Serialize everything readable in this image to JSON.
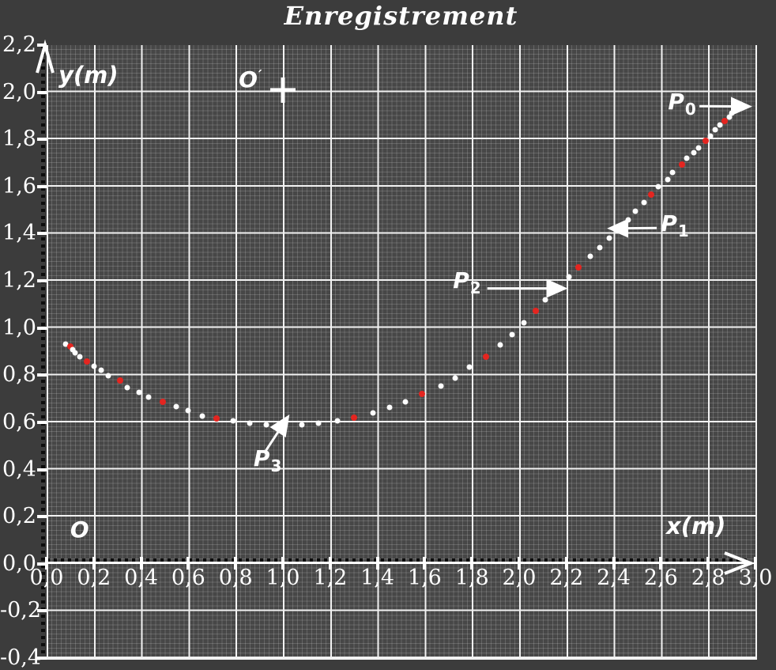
{
  "title": "Enregistrement",
  "axes": {
    "x_label": "x(m)",
    "y_label": "y(m)"
  },
  "colors": {
    "background": "#3c3c3c",
    "plot_background": "#474747",
    "major_grid": "#f2f2f2",
    "point_white": "#fdfdfd",
    "point_red": "#e42520",
    "text": "#ffffff",
    "axis_dash": "#0c0c0c"
  },
  "chart_data": {
    "type": "scatter",
    "title": "Enregistrement",
    "xlabel": "x(m)",
    "ylabel": "y(m)",
    "xlim": [
      0.0,
      3.0
    ],
    "ylim": [
      -0.4,
      2.2
    ],
    "grid": "on",
    "grid_major_step": 0.2,
    "grid_minor_step": 0.02,
    "xticks": {
      "values": [
        0.0,
        0.2,
        0.4,
        0.6,
        0.8,
        1.0,
        1.2,
        1.4,
        1.6,
        1.8,
        2.0,
        2.2,
        2.4,
        2.6,
        2.8,
        3.0
      ],
      "labels": [
        "0,0",
        "0,2",
        "0,4",
        "0,6",
        "0,8",
        "1,0",
        "1,2",
        "1,4",
        "1,6",
        "1,8",
        "2,0",
        "2,2",
        "2,4",
        "2,6",
        "2,8",
        "3,0"
      ]
    },
    "yticks": {
      "values": [
        2.2,
        2.0,
        1.8,
        1.6,
        1.4,
        1.2,
        1.0,
        0.8,
        0.6,
        0.4,
        0.2,
        0.0,
        -0.2,
        -0.4
      ],
      "labels": [
        "2,2",
        "2,0",
        "1,8",
        "1,6",
        "1,4",
        "1,2",
        "1,0",
        "0,8",
        "0,6",
        "0,4",
        "0,2",
        "0,0",
        "-0,2",
        "-0,4"
      ]
    },
    "points": [
      [
        0.08,
        0.932,
        0
      ],
      [
        0.1,
        0.921,
        1
      ],
      [
        0.11,
        0.909,
        0
      ],
      [
        0.12,
        0.896,
        0
      ],
      [
        0.14,
        0.879,
        0
      ],
      [
        0.17,
        0.859,
        1
      ],
      [
        0.2,
        0.838,
        0
      ],
      [
        0.23,
        0.82,
        0
      ],
      [
        0.26,
        0.798,
        0
      ],
      [
        0.31,
        0.776,
        1
      ],
      [
        0.34,
        0.749,
        0
      ],
      [
        0.39,
        0.728,
        0
      ],
      [
        0.43,
        0.708,
        0
      ],
      [
        0.49,
        0.686,
        1
      ],
      [
        0.55,
        0.666,
        0
      ],
      [
        0.6,
        0.65,
        0
      ],
      [
        0.66,
        0.628,
        0
      ],
      [
        0.72,
        0.617,
        1
      ],
      [
        0.79,
        0.605,
        0
      ],
      [
        0.86,
        0.597,
        0
      ],
      [
        0.93,
        0.589,
        0
      ],
      [
        1.0,
        0.59,
        1
      ],
      [
        1.08,
        0.589,
        0
      ],
      [
        1.15,
        0.595,
        0
      ],
      [
        1.23,
        0.606,
        0
      ],
      [
        1.3,
        0.619,
        1
      ],
      [
        1.38,
        0.64,
        0
      ],
      [
        1.45,
        0.663,
        0
      ],
      [
        1.52,
        0.687,
        0
      ],
      [
        1.59,
        0.72,
        1
      ],
      [
        1.67,
        0.753,
        0
      ],
      [
        1.73,
        0.789,
        0
      ],
      [
        1.79,
        0.835,
        0
      ],
      [
        1.86,
        0.879,
        1
      ],
      [
        1.92,
        0.927,
        0
      ],
      [
        1.97,
        0.971,
        0
      ],
      [
        2.02,
        1.024,
        0
      ],
      [
        2.07,
        1.072,
        1
      ],
      [
        2.11,
        1.12,
        0
      ],
      [
        2.16,
        1.166,
        0
      ],
      [
        2.21,
        1.216,
        0
      ],
      [
        2.25,
        1.258,
        1
      ],
      [
        2.3,
        1.303,
        0
      ],
      [
        2.34,
        1.341,
        0
      ],
      [
        2.38,
        1.381,
        0
      ],
      [
        2.42,
        1.422,
        1
      ],
      [
        2.46,
        1.46,
        0
      ],
      [
        2.49,
        1.497,
        0
      ],
      [
        2.53,
        1.534,
        0
      ],
      [
        2.56,
        1.567,
        1
      ],
      [
        2.59,
        1.6,
        0
      ],
      [
        2.63,
        1.63,
        0
      ],
      [
        2.65,
        1.661,
        0
      ],
      [
        2.69,
        1.692,
        1
      ],
      [
        2.71,
        1.719,
        0
      ],
      [
        2.74,
        1.745,
        0
      ],
      [
        2.76,
        1.765,
        0
      ],
      [
        2.79,
        1.794,
        1
      ],
      [
        2.81,
        1.814,
        0
      ],
      [
        2.83,
        1.84,
        0
      ],
      [
        2.85,
        1.862,
        0
      ],
      [
        2.87,
        1.877,
        1
      ],
      [
        2.89,
        1.894,
        0
      ],
      [
        2.9,
        1.911,
        0
      ],
      [
        2.92,
        1.925,
        0
      ],
      [
        2.93,
        1.938,
        1
      ]
    ],
    "point_note": "red mark every 4th recorded position",
    "named_points": {
      "P0": [
        2.93,
        1.94
      ],
      "P1": [
        2.42,
        1.42
      ],
      "P2": [
        2.16,
        1.17
      ],
      "P3": [
        1.0,
        0.59
      ],
      "O_prime": [
        1.0,
        2.0
      ],
      "O": [
        0.0,
        0.0
      ]
    },
    "annotations": [
      {
        "id": "P0",
        "text": "P",
        "sub": "0",
        "prime": false,
        "label_at": [
          2.63,
          2.016
        ],
        "arrow": [
          [
            2.763,
            1.941
          ],
          [
            2.906,
            1.94
          ]
        ]
      },
      {
        "id": "P1",
        "text": "P",
        "sub": "1",
        "prime": false,
        "label_at": [
          2.6,
          1.499
        ],
        "arrow": [
          [
            2.582,
            1.424
          ],
          [
            2.452,
            1.423
          ]
        ]
      },
      {
        "id": "P2",
        "text": "P",
        "sub": "2",
        "prime": false,
        "label_at": [
          1.72,
          1.257
        ],
        "arrow": [
          [
            1.865,
            1.168
          ],
          [
            2.125,
            1.168
          ]
        ]
      },
      {
        "id": "P3",
        "text": "P",
        "sub": "3",
        "prime": false,
        "label_at": [
          0.876,
          0.503
        ],
        "arrow": [
          [
            0.928,
            0.48
          ],
          [
            0.984,
            0.566
          ]
        ]
      },
      {
        "id": "O",
        "text": "O",
        "sub": "",
        "prime": false,
        "label_at": [
          0.1,
          0.2
        ]
      },
      {
        "id": "O-prime",
        "text": "O",
        "sub": "",
        "prime": true,
        "label_at": [
          0.813,
          2.11
        ],
        "cross_at": [
          1.0,
          2.009
        ]
      }
    ]
  }
}
